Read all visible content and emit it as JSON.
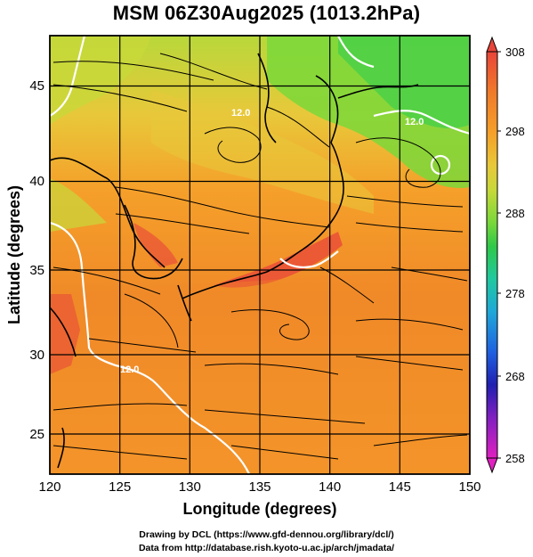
{
  "title": "MSM 06Z30Aug2025 (1013.2hPa)",
  "map": {
    "lon_range": [
      120,
      150
    ],
    "lat_range": [
      22.7,
      48
    ],
    "x_ticks": [
      120,
      125,
      130,
      135,
      140,
      145,
      150
    ],
    "y_ticks": [
      25,
      30,
      35,
      40,
      45
    ],
    "xlabel": "Longitude (degrees)",
    "ylabel": "Latitude  (degrees)",
    "contour_labels": [
      "12.0",
      "12.0",
      "12.0"
    ],
    "field": "temperature (K) at 1013.2hPa with streamlines"
  },
  "colorbar": {
    "ticks": [
      "308",
      "298",
      "288",
      "278",
      "268",
      "258"
    ],
    "colors": [
      "#e8453a",
      "#f07a2a",
      "#f5a02a",
      "#e8c83a",
      "#c8d83a",
      "#7ad83a",
      "#2ec84a",
      "#20c8a0",
      "#20a8d8",
      "#2060e0",
      "#2020b0",
      "#8020c0",
      "#e020c0"
    ]
  },
  "credits": {
    "line1": "Drawing by DCL (https://www.gfd-dennou.org/library/dcl/)",
    "line2": "Data from http://database.rish.kyoto-u.ac.jp/arch/jmadata/"
  }
}
